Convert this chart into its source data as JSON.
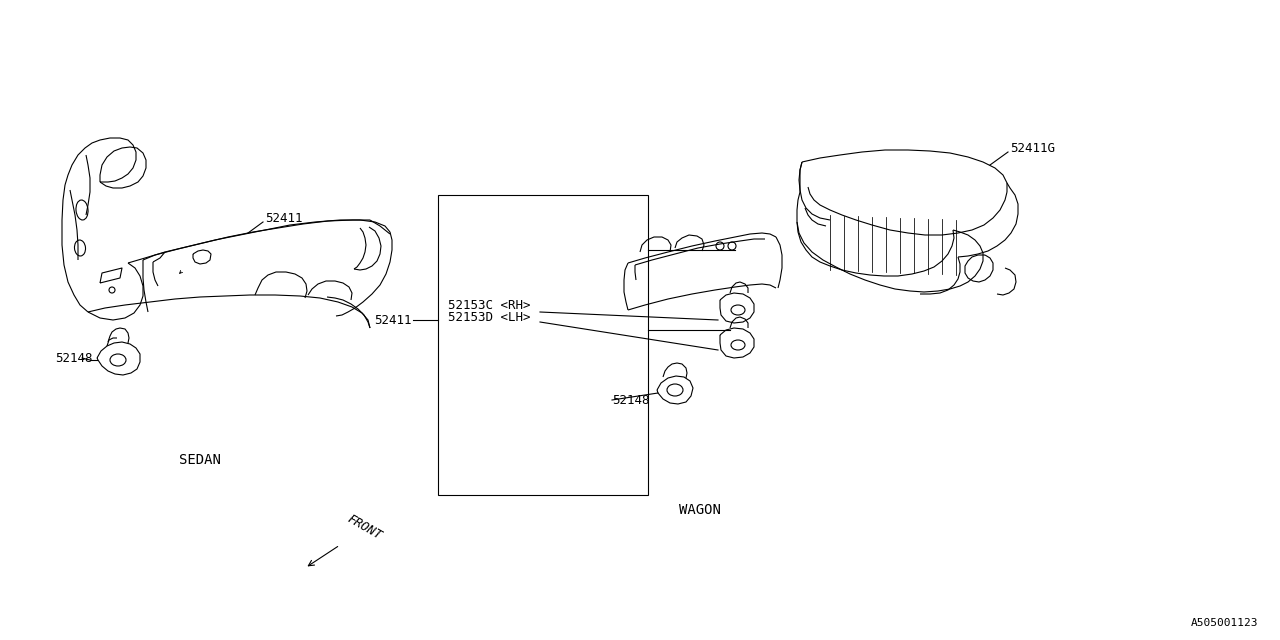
{
  "bg_color": "#ffffff",
  "line_color": "#000000",
  "labels": {
    "sedan_label": "SEDAN",
    "wagon_label": "WAGON",
    "part_52411_sedan": "52411",
    "part_52148_sedan": "52148",
    "part_52411_wagon": "52411",
    "part_52153c": "52153C <RH>",
    "part_52153d": "52153D <LH>",
    "part_52148_wagon": "52148",
    "part_52411g": "52411G",
    "front_label": "FRONT",
    "catalog_num": "A505001123"
  },
  "font_size_main": 10,
  "font_size_part": 9,
  "font_size_catalog": 8,
  "lw": 0.8
}
